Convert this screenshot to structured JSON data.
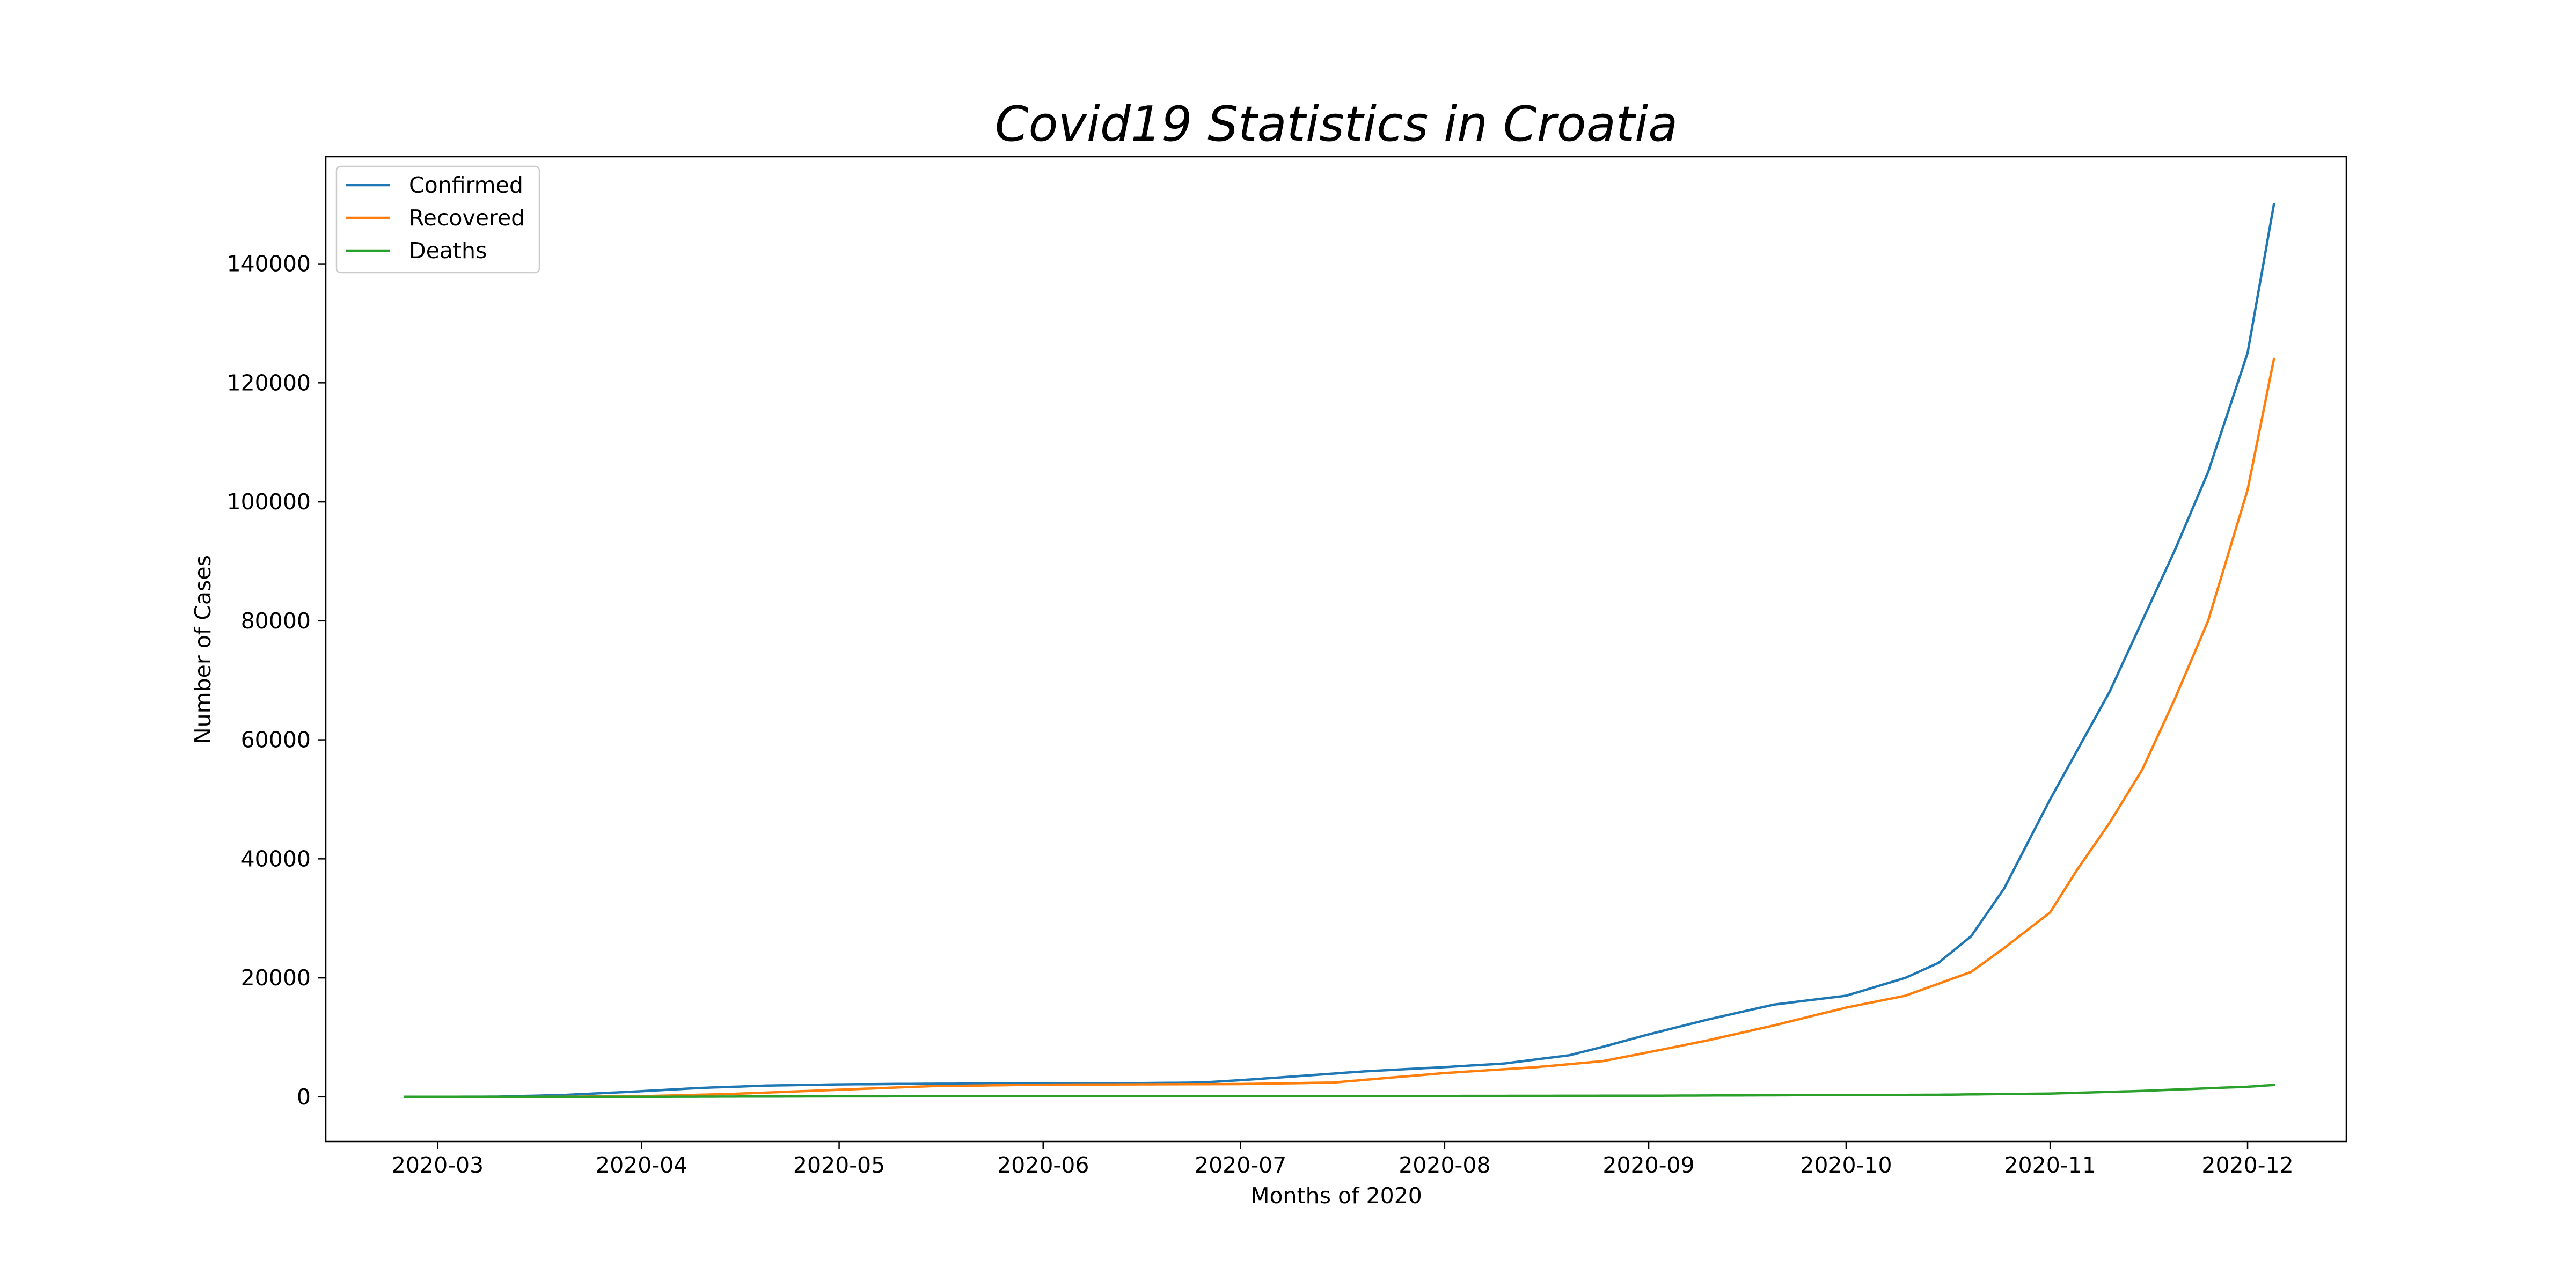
{
  "chart_data": {
    "type": "line",
    "title": "Covid19 Statistics in Croatia",
    "xlabel": "Months of 2020",
    "ylabel": "Number of Cases",
    "xlim": [
      "2020-02-13",
      "2020-12-16"
    ],
    "ylim": [
      -7500,
      158000
    ],
    "x_ticks": [
      "2020-03",
      "2020-04",
      "2020-05",
      "2020-06",
      "2020-07",
      "2020-08",
      "2020-09",
      "2020-10",
      "2020-11",
      "2020-12"
    ],
    "y_ticks": [
      0,
      20000,
      40000,
      60000,
      80000,
      100000,
      120000,
      140000
    ],
    "grid": false,
    "legend_position": "top-left",
    "series": [
      {
        "name": "Confirmed",
        "color": "#1f77b4",
        "x": [
          "2020-02-25",
          "2020-03-10",
          "2020-03-20",
          "2020-03-31",
          "2020-04-10",
          "2020-04-20",
          "2020-05-01",
          "2020-05-15",
          "2020-06-01",
          "2020-06-15",
          "2020-06-25",
          "2020-07-01",
          "2020-07-10",
          "2020-07-20",
          "2020-08-01",
          "2020-08-10",
          "2020-08-20",
          "2020-08-25",
          "2020-09-01",
          "2020-09-10",
          "2020-09-20",
          "2020-10-01",
          "2020-10-10",
          "2020-10-15",
          "2020-10-20",
          "2020-10-25",
          "2020-11-01",
          "2020-11-05",
          "2020-11-10",
          "2020-11-15",
          "2020-11-20",
          "2020-11-25",
          "2020-12-01",
          "2020-12-05"
        ],
        "values": [
          0,
          30,
          300,
          900,
          1500,
          1900,
          2100,
          2200,
          2250,
          2300,
          2400,
          2800,
          3500,
          4300,
          5000,
          5600,
          7000,
          8400,
          10500,
          13000,
          15500,
          17000,
          20000,
          22500,
          27000,
          35000,
          50000,
          58000,
          68000,
          80000,
          92000,
          105000,
          125000,
          150000
        ]
      },
      {
        "name": "Recovered",
        "color": "#ff7f0e",
        "x": [
          "2020-02-25",
          "2020-03-20",
          "2020-04-01",
          "2020-04-15",
          "2020-05-01",
          "2020-05-15",
          "2020-06-01",
          "2020-06-15",
          "2020-07-01",
          "2020-07-15",
          "2020-08-01",
          "2020-08-15",
          "2020-08-25",
          "2020-09-01",
          "2020-09-10",
          "2020-09-20",
          "2020-10-01",
          "2020-10-10",
          "2020-10-20",
          "2020-10-25",
          "2020-11-01",
          "2020-11-05",
          "2020-11-10",
          "2020-11-15",
          "2020-11-20",
          "2020-11-25",
          "2020-12-01",
          "2020-12-05"
        ],
        "values": [
          0,
          20,
          100,
          500,
          1200,
          1800,
          2050,
          2100,
          2150,
          2400,
          4000,
          5000,
          6000,
          7500,
          9500,
          12000,
          15000,
          17000,
          21000,
          25000,
          31000,
          38000,
          46000,
          55000,
          67000,
          80000,
          102000,
          124000
        ]
      },
      {
        "name": "Deaths",
        "color": "#2ca02c",
        "x": [
          "2020-02-25",
          "2020-04-01",
          "2020-05-01",
          "2020-06-01",
          "2020-07-01",
          "2020-08-01",
          "2020-09-01",
          "2020-10-01",
          "2020-10-15",
          "2020-11-01",
          "2020-11-15",
          "2020-12-01",
          "2020-12-05"
        ],
        "values": [
          0,
          5,
          85,
          105,
          110,
          150,
          190,
          300,
          350,
          550,
          1000,
          1700,
          2000
        ]
      }
    ]
  }
}
